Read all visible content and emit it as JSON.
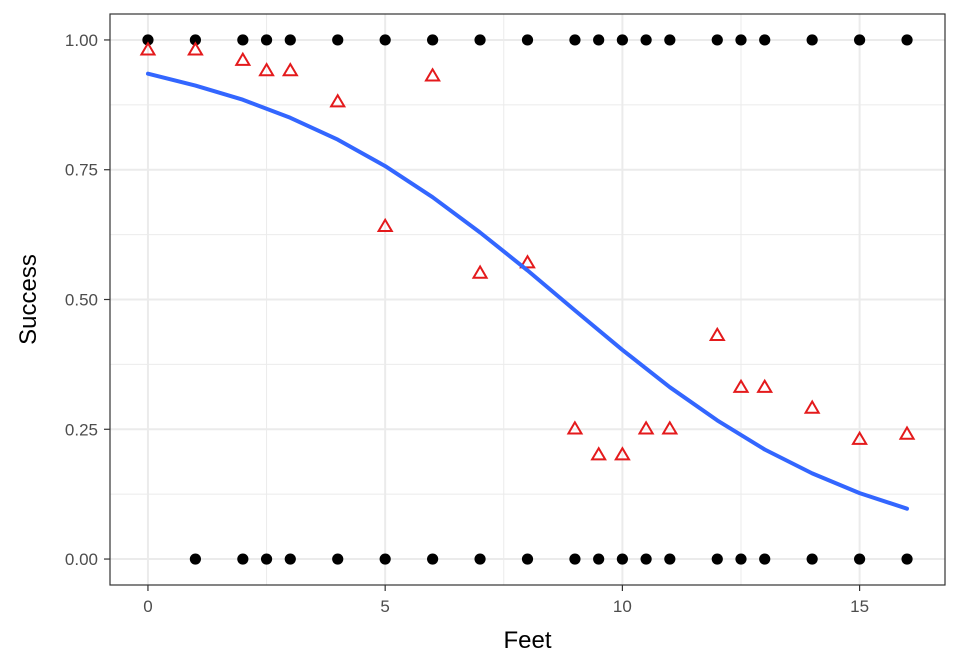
{
  "chart_data": {
    "type": "scatter",
    "title": "",
    "xlabel": "Feet",
    "ylabel": "Success",
    "xlim": [
      -0.8,
      16.8
    ],
    "ylim": [
      -0.05,
      1.05
    ],
    "x_ticks": [
      0,
      5,
      10,
      15
    ],
    "y_ticks": [
      0,
      0.25,
      0.5,
      0.75,
      1
    ],
    "x_tick_labels": [
      "0",
      "5",
      "10",
      "15"
    ],
    "y_tick_labels": [
      "0.00",
      "0.25",
      "0.50",
      "0.75",
      "1.00"
    ],
    "grid": true,
    "legend": "none",
    "colors": {
      "outcomes": "#000000",
      "proportions": "#e41a1c",
      "fit": "#3366ff",
      "grid": "#ebebeb",
      "panel_border": "#333333"
    },
    "series": [
      {
        "kind": "points",
        "marker": "circle",
        "x": [
          0,
          1,
          2,
          2.5,
          3,
          4,
          5,
          6,
          7,
          8,
          9,
          9.5,
          10,
          10.5,
          11,
          12,
          12.5,
          13,
          14,
          15,
          16,
          1,
          2,
          2.5,
          3,
          4,
          5,
          6,
          7,
          8,
          9,
          9.5,
          10,
          10.5,
          11,
          12,
          12.5,
          13,
          14,
          15,
          16
        ],
        "y": [
          1,
          1,
          1,
          1,
          1,
          1,
          1,
          1,
          1,
          1,
          1,
          1,
          1,
          1,
          1,
          1,
          1,
          1,
          1,
          1,
          1,
          0,
          0,
          0,
          0,
          0,
          0,
          0,
          0,
          0,
          0,
          0,
          0,
          0,
          0,
          0,
          0,
          0,
          0,
          0,
          0
        ]
      },
      {
        "kind": "points",
        "marker": "triangle-open",
        "x": [
          0,
          1,
          2,
          2.5,
          3,
          4,
          5,
          6,
          7,
          8,
          9,
          9.5,
          10,
          10.5,
          11,
          12,
          12.5,
          13,
          14,
          15,
          16
        ],
        "y": [
          0.98,
          0.98,
          0.96,
          0.94,
          0.94,
          0.88,
          0.64,
          0.93,
          0.55,
          0.57,
          0.25,
          0.2,
          0.2,
          0.25,
          0.25,
          0.43,
          0.33,
          0.33,
          0.29,
          0.23,
          0.24
        ]
      },
      {
        "kind": "line",
        "x": [
          0,
          1,
          2,
          3,
          4,
          5,
          6,
          7,
          8,
          9,
          10,
          11,
          12,
          13,
          14,
          15,
          16
        ],
        "y": [
          0.935,
          0.912,
          0.885,
          0.85,
          0.808,
          0.757,
          0.697,
          0.629,
          0.556,
          0.479,
          0.403,
          0.331,
          0.267,
          0.211,
          0.165,
          0.127,
          0.097
        ]
      }
    ]
  }
}
